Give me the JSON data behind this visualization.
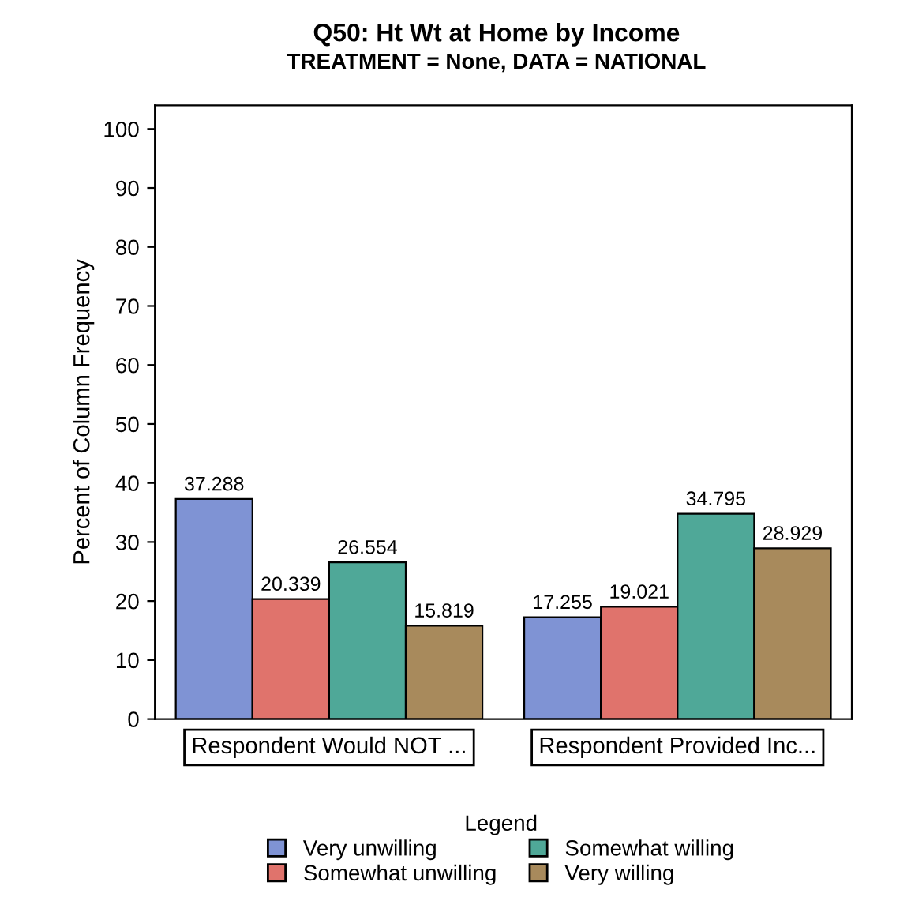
{
  "chart_data": {
    "type": "bar",
    "title": "Q50: Ht Wt at Home by Income",
    "subtitle": "TREATMENT = None, DATA = NATIONAL",
    "ylabel": "Percent of Column Frequency",
    "legend_title": "Legend",
    "categories": [
      "Respondent Would NOT ...",
      "Respondent Provided Inc..."
    ],
    "series": [
      {
        "name": "Very unwilling",
        "color": "#7f93d4",
        "values": [
          37.288,
          17.255
        ]
      },
      {
        "name": "Somewhat unwilling",
        "color": "#e0736c",
        "values": [
          20.339,
          19.021
        ]
      },
      {
        "name": "Somewhat willing",
        "color": "#4fa898",
        "values": [
          26.554,
          34.795
        ]
      },
      {
        "name": "Very willing",
        "color": "#a88a5c",
        "values": [
          15.819,
          28.929
        ]
      }
    ],
    "ylim": [
      0,
      104
    ],
    "yticks": [
      0,
      10,
      20,
      30,
      40,
      50,
      60,
      70,
      80,
      90,
      100
    ],
    "data_labels": true,
    "legend": "bottom",
    "grid": false
  }
}
